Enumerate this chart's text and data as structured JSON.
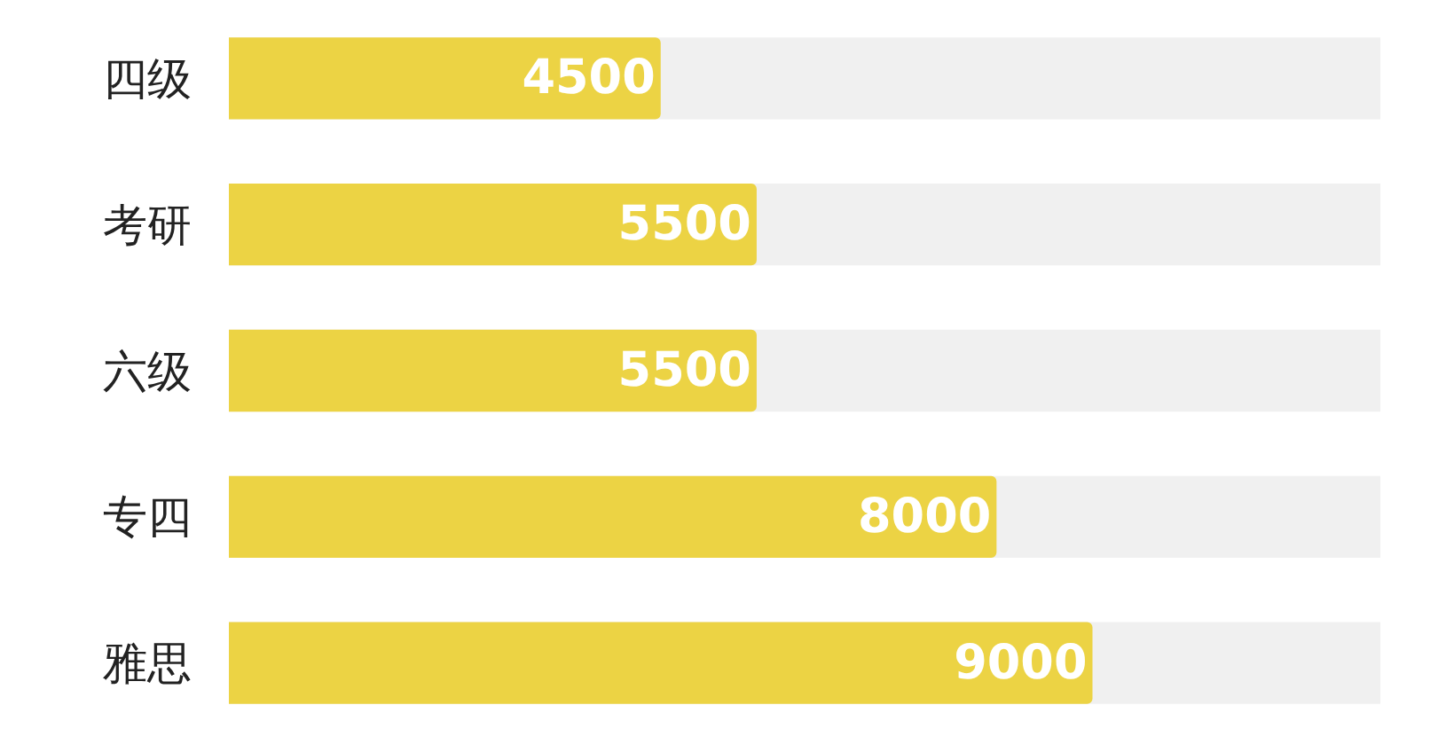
{
  "chart_data": {
    "type": "bar",
    "orientation": "horizontal",
    "categories": [
      "四级",
      "考研",
      "六级",
      "专四",
      "雅思"
    ],
    "values": [
      4500,
      5500,
      5500,
      8000,
      9000
    ],
    "color": "#ecd344",
    "data_labels": true,
    "xlim": [
      0,
      12000
    ],
    "tick_labels": "y"
  }
}
